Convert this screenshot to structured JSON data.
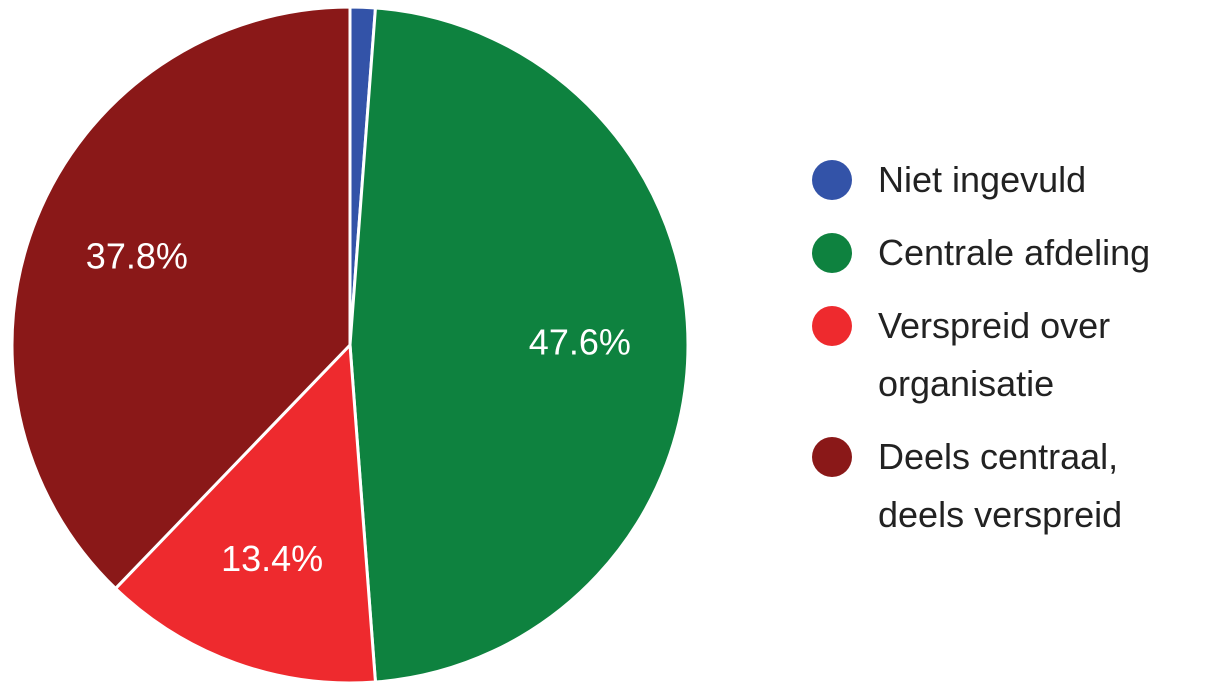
{
  "chart_data": {
    "type": "pie",
    "categories": [
      "Niet ingevuld",
      "Centrale afdeling",
      "Verspreid over organisatie",
      "Deels centraal, deels verspreid"
    ],
    "values": [
      1.2,
      47.6,
      13.4,
      37.8
    ],
    "value_labels": [
      null,
      "47.6%",
      "13.4%",
      "37.8%"
    ],
    "colors": [
      "#3353a8",
      "#0e823f",
      "#ee2a2e",
      "#8a1818"
    ],
    "legend": "right"
  }
}
